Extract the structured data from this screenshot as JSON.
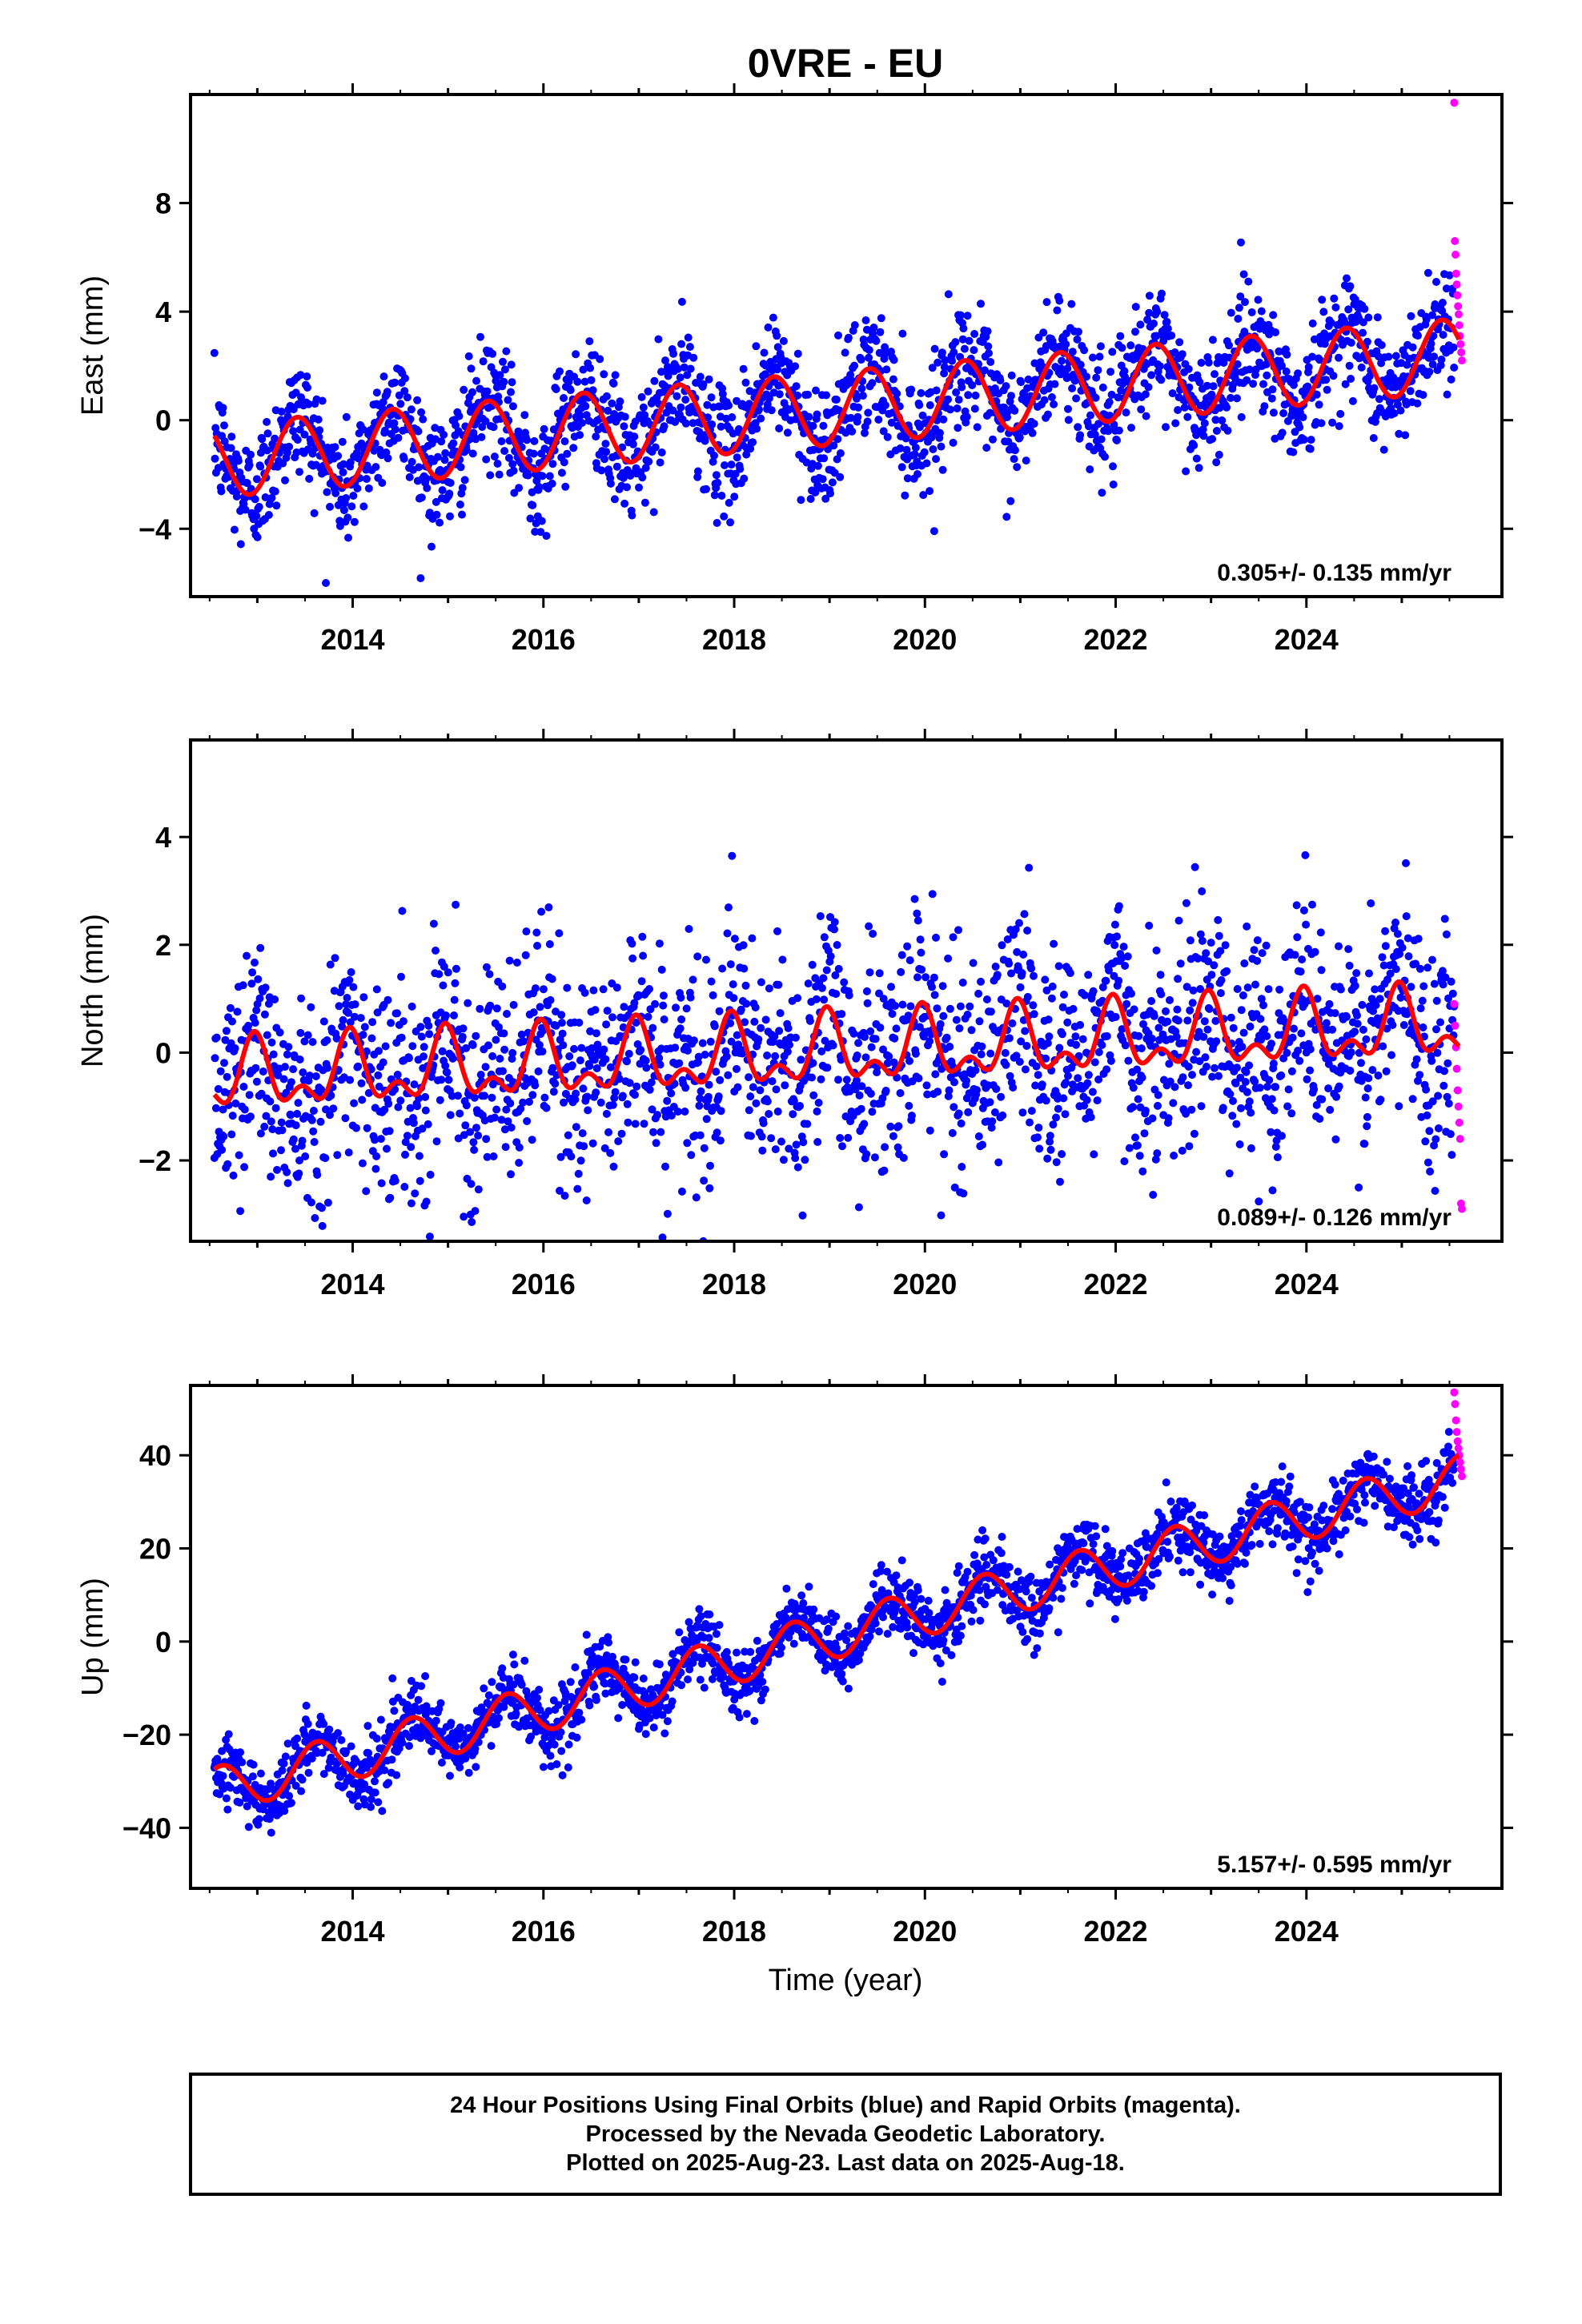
{
  "title": "0VRE - EU",
  "colors": {
    "final_orbits": "#0000ff",
    "rapid_orbits": "#ff00ff",
    "model_fit": "#ff0000",
    "frame": "#000000"
  },
  "xaxis": {
    "label": "Time (year)",
    "range": [
      2012.3,
      2026.05
    ],
    "ticks": [
      2014,
      2016,
      2018,
      2020,
      2022,
      2024
    ],
    "tick_labels": [
      "2014",
      "2016",
      "2018",
      "2020",
      "2022",
      "2024"
    ]
  },
  "footer": {
    "line1": "24 Hour Positions Using Final Orbits (blue) and Rapid Orbits (magenta).",
    "line2": "Processed by the Nevada Geodetic Laboratory.",
    "line3": "Plotted on 2025-Aug-23. Last data on 2025-Aug-18."
  },
  "chart_data": [
    {
      "type": "scatter",
      "component": "east",
      "ylabel": "East (mm)",
      "ylim": [
        -6.5,
        12.0
      ],
      "yticks": [
        -4,
        0,
        4,
        8
      ],
      "ytick_labels": [
        "−4",
        "0",
        "4",
        "8"
      ],
      "rate_text": "0.305+/- 0.135 mm/yr",
      "trend": {
        "start_year": 2012.55,
        "end_year": 2025.6,
        "start_value": -1.5,
        "end_value": 2.4
      },
      "seasonal_amplitude": 1.35,
      "scatter_sigma": 1.1,
      "rapid_values": [
        11.7,
        6.6,
        6.1,
        5.4,
        5.0,
        4.6,
        4.2,
        3.9,
        3.5,
        3.1,
        2.8,
        2.5,
        2.2
      ],
      "series": [
        {
          "name": "Final Orbits (blue)",
          "style": "points",
          "date_range": [
            2012.55,
            2025.55
          ]
        },
        {
          "name": "Rapid Orbits (magenta)",
          "style": "points",
          "date_range": [
            2025.55,
            2025.63
          ]
        },
        {
          "name": "Model fit",
          "style": "line"
        }
      ]
    },
    {
      "type": "scatter",
      "component": "north",
      "ylabel": "North (mm)",
      "ylim": [
        -3.5,
        5.8
      ],
      "yticks": [
        -2,
        0,
        2,
        4
      ],
      "ytick_labels": [
        "−2",
        "0",
        "2",
        "4"
      ],
      "rate_text": "0.089+/- 0.126 mm/yr",
      "trend": {
        "start_year": 2012.55,
        "end_year": 2025.6,
        "start_value": -0.5,
        "end_value": 0.5
      },
      "seasonal_amplitude": 0.75,
      "scatter_sigma": 1.0,
      "rapid_values": [
        0.9,
        0.5,
        0.1,
        -0.3,
        -0.7,
        -1.0,
        -1.3,
        -1.6,
        -2.8,
        -2.9
      ],
      "series": [
        {
          "name": "Final Orbits (blue)",
          "style": "points",
          "date_range": [
            2012.55,
            2025.55
          ]
        },
        {
          "name": "Rapid Orbits (magenta)",
          "style": "points",
          "date_range": [
            2025.55,
            2025.63
          ]
        },
        {
          "name": "Model fit",
          "style": "line"
        }
      ]
    },
    {
      "type": "scatter",
      "component": "up",
      "ylabel": "Up (mm)",
      "ylim": [
        -53,
        55
      ],
      "yticks": [
        -40,
        -20,
        0,
        20,
        40
      ],
      "ytick_labels": [
        "−40",
        "−20",
        "0",
        "20",
        "40"
      ],
      "rate_text": "5.157+/- 0.595 mm/yr",
      "trend": {
        "start_year": 2012.55,
        "end_year": 2025.6,
        "start_value": -32.0,
        "end_value": 35.0
      },
      "seasonal_amplitude": 5.0,
      "scatter_sigma": 3.6,
      "rapid_values": [
        53.5,
        51.0,
        47.5,
        45.0,
        43.0,
        41.5,
        40.0,
        38.5,
        37.0,
        35.5
      ],
      "series": [
        {
          "name": "Final Orbits (blue)",
          "style": "points",
          "date_range": [
            2012.55,
            2025.55
          ]
        },
        {
          "name": "Rapid Orbits (magenta)",
          "style": "points",
          "date_range": [
            2025.55,
            2025.63
          ]
        },
        {
          "name": "Model fit",
          "style": "line"
        }
      ]
    }
  ]
}
